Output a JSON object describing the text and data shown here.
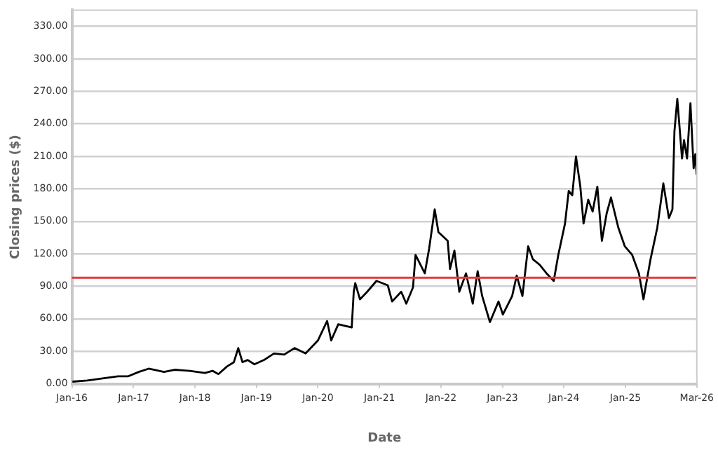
{
  "chart_data": {
    "type": "line",
    "xlabel": "Date",
    "ylabel": "Closing prices ($)",
    "x": [
      "2016-01-04",
      "2016-04-01",
      "2016-07-01",
      "2016-10-01",
      "2016-12-01",
      "2017-02-01",
      "2017-04-01",
      "2017-07-01",
      "2017-09-01",
      "2017-12-01",
      "2018-03-01",
      "2018-04-15",
      "2018-05-20",
      "2018-07-10",
      "2018-08-20",
      "2018-09-15",
      "2018-10-10",
      "2018-11-10",
      "2018-12-20",
      "2019-02-15",
      "2019-04-15",
      "2019-06-15",
      "2019-08-15",
      "2019-10-20",
      "2020-01-01",
      "2020-02-25",
      "2020-03-20",
      "2020-05-01",
      "2020-07-20",
      "2020-08-01",
      "2020-08-10",
      "2020-09-07",
      "2020-10-20",
      "2020-12-14",
      "2021-02-19",
      "2021-03-17",
      "2021-05-10",
      "2021-06-09",
      "2021-07-19",
      "2021-08-03",
      "2021-09-27",
      "2021-10-23",
      "2021-11-25",
      "2021-12-17",
      "2022-02-10",
      "2022-02-24",
      "2022-03-22",
      "2022-04-20",
      "2022-05-30",
      "2022-07-09",
      "2022-08-07",
      "2022-09-03",
      "2022-10-19",
      "2022-12-09",
      "2023-01-04",
      "2023-02-28",
      "2023-03-27",
      "2023-04-30",
      "2023-06-03",
      "2023-07-01",
      "2023-08-10",
      "2023-09-20",
      "2023-11-02",
      "2023-11-29",
      "2024-01-08",
      "2024-01-30",
      "2024-02-20",
      "2024-03-13",
      "2024-04-08",
      "2024-04-27",
      "2024-05-25",
      "2024-06-20",
      "2024-07-18",
      "2024-08-14",
      "2024-09-11",
      "2024-10-07",
      "2024-11-20",
      "2024-12-28",
      "2025-02-10",
      "2025-03-22",
      "2025-04-18",
      "2025-05-30",
      "2025-07-09",
      "2025-08-14",
      "2025-09-16",
      "2025-10-07",
      "2025-10-19",
      "2025-11-05",
      "2025-12-03",
      "2025-12-15",
      "2026-01-02",
      "2026-01-22",
      "2026-02-10",
      "2026-02-20",
      "2026-02-28"
    ],
    "series": [
      {
        "color": "#000000",
        "values": [
          2,
          3,
          5,
          7,
          7,
          11,
          14,
          11,
          13,
          12,
          10,
          12,
          9,
          16,
          20,
          33,
          20,
          22,
          18,
          22,
          28,
          27,
          33,
          28,
          40,
          58,
          40,
          55,
          52,
          85,
          93,
          78,
          85,
          95,
          91,
          76,
          85,
          74,
          89,
          119,
          102,
          125,
          161,
          140,
          132,
          106,
          123,
          85,
          102,
          74,
          104,
          81,
          57,
          76,
          64,
          81,
          100,
          81,
          127,
          115,
          110,
          102,
          95,
          119,
          148,
          178,
          174,
          210,
          182,
          148,
          170,
          159,
          182,
          132,
          157,
          172,
          144,
          127,
          119,
          102,
          78,
          115,
          144,
          185,
          153,
          161,
          233,
          263,
          208,
          225,
          208,
          259,
          199,
          212,
          193
        ]
      }
    ],
    "xlim": [
      "2016-01-01",
      "2026-03-01"
    ],
    "xticks": [
      {
        "value": "2016-01-01",
        "label": "Jan-16"
      },
      {
        "value": "2017-01-01",
        "label": "Jan-17"
      },
      {
        "value": "2018-01-01",
        "label": "Jan-18"
      },
      {
        "value": "2019-01-01",
        "label": "Jan-19"
      },
      {
        "value": "2020-01-01",
        "label": "Jan-20"
      },
      {
        "value": "2021-01-01",
        "label": "Jan-21"
      },
      {
        "value": "2022-01-01",
        "label": "Jan-22"
      },
      {
        "value": "2023-01-01",
        "label": "Jan-23"
      },
      {
        "value": "2024-01-01",
        "label": "Jan-24"
      },
      {
        "value": "2025-01-01",
        "label": "Jan-25"
      },
      {
        "value": "2026-03-01",
        "label": "Mar-26"
      }
    ],
    "ylim": [
      0,
      345
    ],
    "yticks": [
      {
        "value": 0,
        "label": "0.00"
      },
      {
        "value": 30,
        "label": "30.00"
      },
      {
        "value": 60,
        "label": "60.00"
      },
      {
        "value": 90,
        "label": "90.00"
      },
      {
        "value": 120,
        "label": "120.00"
      },
      {
        "value": 150,
        "label": "150.00"
      },
      {
        "value": 180,
        "label": "180.00"
      },
      {
        "value": 210,
        "label": "210.00"
      },
      {
        "value": 240,
        "label": "240.00"
      },
      {
        "value": 270,
        "label": "270.00"
      },
      {
        "value": 300,
        "label": "300.00"
      },
      {
        "value": 330,
        "label": "330.00"
      }
    ],
    "ref_lines": [
      {
        "axis": "y",
        "value": 98,
        "color": "#e8393a"
      }
    ],
    "grid": "y",
    "legend": false,
    "marker": "none",
    "line_style": "solid"
  }
}
